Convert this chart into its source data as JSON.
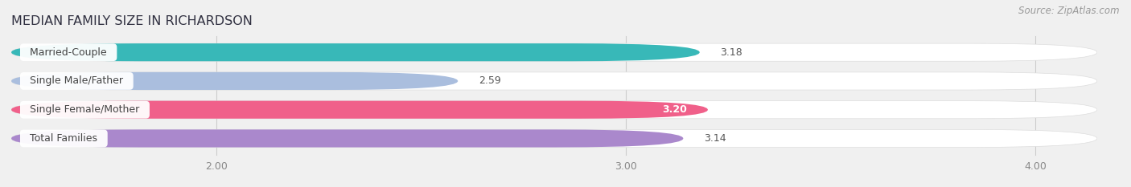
{
  "title": "MEDIAN FAMILY SIZE IN RICHARDSON",
  "source": "Source: ZipAtlas.com",
  "categories": [
    "Married-Couple",
    "Single Male/Father",
    "Single Female/Mother",
    "Total Families"
  ],
  "values": [
    3.18,
    2.59,
    3.2,
    3.14
  ],
  "colors": [
    "#38b8b8",
    "#aabede",
    "#f0608a",
    "#aa88cc"
  ],
  "xlim_left": 1.5,
  "xlim_right": 4.15,
  "xticks": [
    2.0,
    3.0,
    4.0
  ],
  "bar_height": 0.62,
  "background_color": "#f0f0f0",
  "label_color": "#444444",
  "value_label_color_outside": "#555555",
  "value_label_color_inside": "#ffffff",
  "value_inside_indices": [
    2
  ],
  "title_fontsize": 11.5,
  "label_fontsize": 9,
  "tick_fontsize": 9,
  "source_fontsize": 8.5
}
